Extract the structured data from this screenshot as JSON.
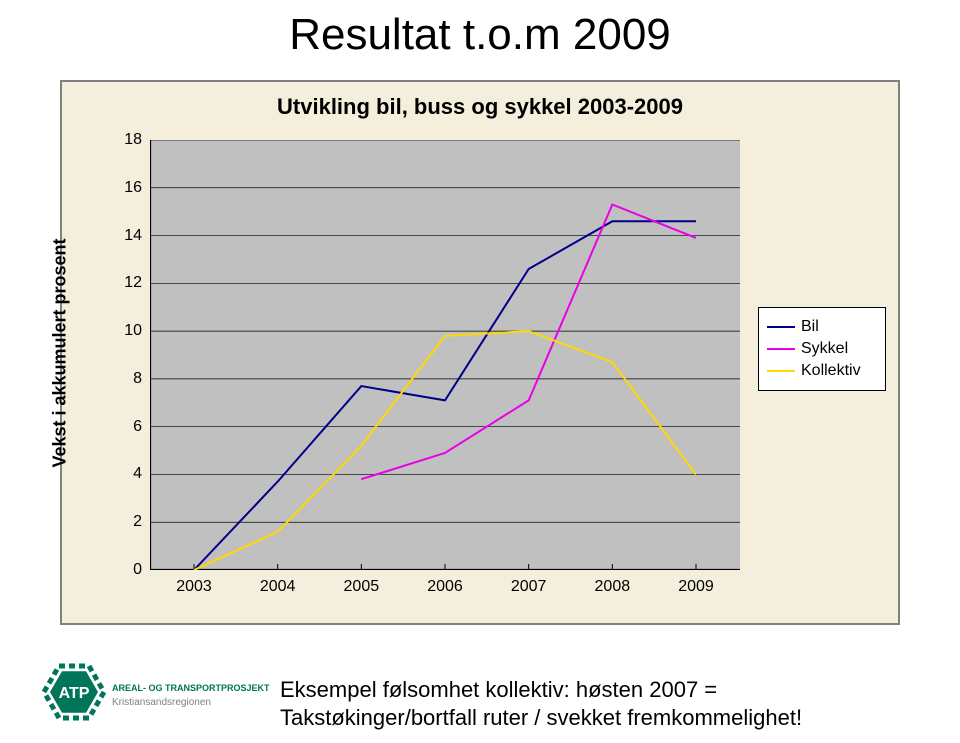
{
  "title": "Resultat t.o.m 2009",
  "chart": {
    "type": "line",
    "title": "Utvikling bil, buss og sykkel 2003-2009",
    "y_label": "Vekst i akkumulert prosent",
    "title_fontsize": 22,
    "label_fontsize": 18,
    "tick_fontsize": 16,
    "background_color": "#f4efdc",
    "plot_bg_color": "#c0c0c0",
    "border_color": "#808080",
    "grid_color": "#000000",
    "grid_width": 0.7,
    "axis_color": "#000000",
    "line_width": 2,
    "x_categories": [
      "2003",
      "2004",
      "2005",
      "2006",
      "2007",
      "2008",
      "2009"
    ],
    "ylim": [
      0,
      18
    ],
    "ytick_step": 2,
    "series": [
      {
        "name": "Bil",
        "color": "#00008b",
        "values": [
          0,
          3.7,
          7.7,
          7.1,
          12.6,
          14.6,
          14.6
        ]
      },
      {
        "name": "Sykkel",
        "color": "#e800e8",
        "values": [
          null,
          null,
          3.8,
          4.9,
          7.1,
          15.3,
          13.9
        ]
      },
      {
        "name": "Kollektiv",
        "color": "#ffd800",
        "values": [
          0,
          1.6,
          5.2,
          9.8,
          10.0,
          8.7,
          4.0
        ]
      }
    ]
  },
  "legend": {
    "items": [
      {
        "label": "Bil",
        "color": "#00008b"
      },
      {
        "label": "Sykkel",
        "color": "#e800e8"
      },
      {
        "label": "Kollektiv",
        "color": "#ffd800"
      }
    ]
  },
  "footer_text_line1": "Eksempel følsomhet kollektiv: høsten 2007 =",
  "footer_text_line2": "Takstøkinger/bortfall ruter / svekket fremkommelighet!",
  "logo": {
    "badge_text": "ATP",
    "title": "AREAL- OG TRANSPORTPROSJEKTET",
    "subtitle": "Kristiansandsregionen",
    "badge_bg": "#00755a",
    "text_color": "#00755a",
    "subtitle_color": "#808080"
  }
}
